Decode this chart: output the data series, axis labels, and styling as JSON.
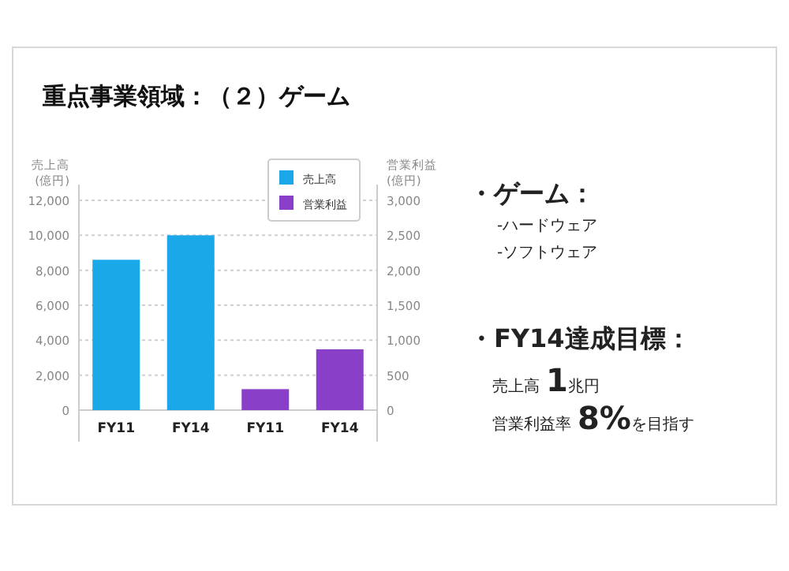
{
  "chart_data": {
    "type": "bar",
    "title": "重点事業領域：（２）ゲーム",
    "categories": [
      "FY11",
      "FY14",
      "FY11",
      "FY14"
    ],
    "series": [
      {
        "name": "売上高",
        "color": "#1aa8e8",
        "axis": "y",
        "values": [
          8600,
          10000,
          null,
          null
        ]
      },
      {
        "name": "営業利益",
        "color": "#8a3fc8",
        "axis": "y2",
        "values": [
          null,
          null,
          300,
          870
        ]
      }
    ],
    "ylabel": "売上高 (億円)",
    "y2label": "営業利益 (億円)",
    "ylim": [
      0,
      12000
    ],
    "yticks": [
      0,
      {
        "value": 2000,
        "label": "2,000"
      },
      {
        "value": 4000,
        "label": "4,000"
      },
      {
        "value": 6000,
        "label": "6,000"
      },
      {
        "value": 8000,
        "label": "8,000"
      },
      {
        "value": 10000,
        "label": "10,000"
      },
      {
        "value": 12000,
        "label": "12,000"
      }
    ],
    "y2lim": [
      0,
      3000
    ],
    "y2ticks": [
      0,
      500,
      {
        "value": 1000,
        "label": "1,000"
      },
      {
        "value": 1500,
        "label": "1,500"
      },
      {
        "value": 2000,
        "label": "2,000"
      },
      {
        "value": 2500,
        "label": "2,500"
      },
      {
        "value": 3000,
        "label": "3,000"
      }
    ],
    "grid": "y",
    "legend": "top right",
    "annotations": [
      "・ゲーム：",
      "-ハードウェア",
      "-ソフトウェア",
      "・FY14達成目標：",
      "売上高**1**兆円",
      "営業利益率**8%**を目指す"
    ]
  }
}
